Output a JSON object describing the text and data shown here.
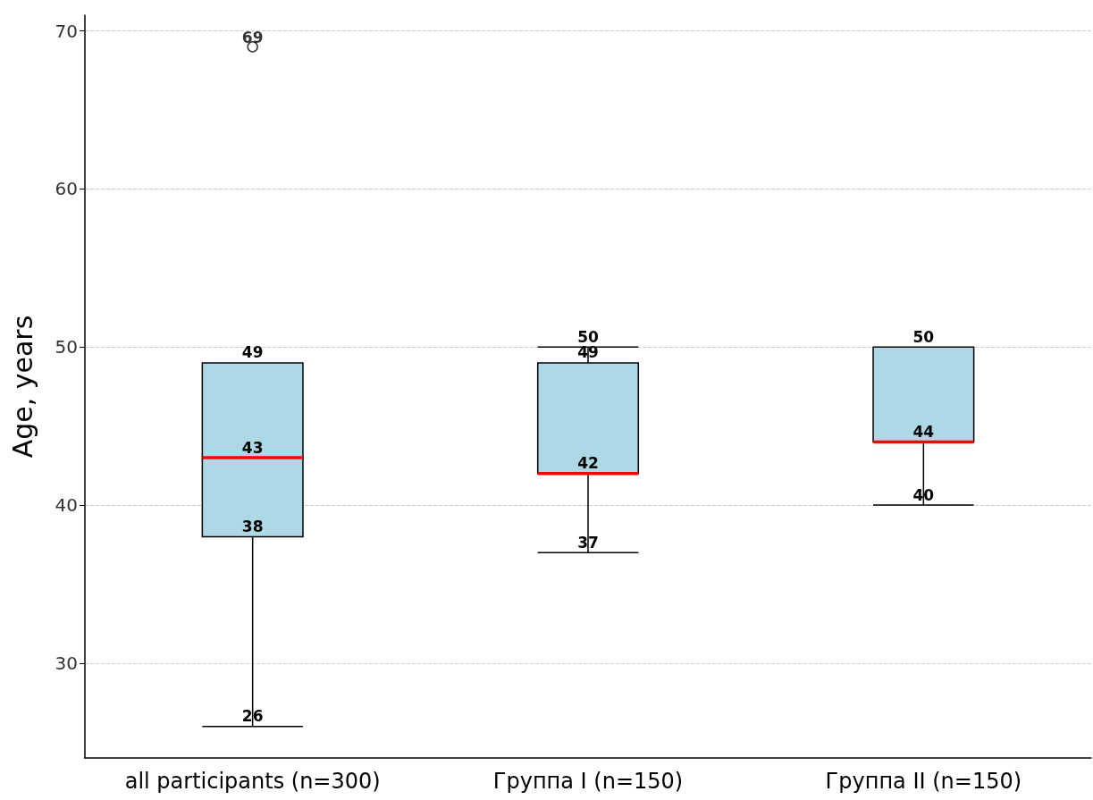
{
  "chart_data": {
    "type": "box",
    "ylabel": "Age, years",
    "categories": [
      "all participants (n=300)",
      "Группа I (n=150)",
      "Группа II (n=150)"
    ],
    "series": [
      {
        "color": "#add8e6",
        "boxes": [
          {
            "low": 26,
            "q1": 38,
            "median": 43,
            "q3": 49,
            "high": 49
          },
          {
            "low": 37,
            "q1": 42,
            "median": 42,
            "q3": 49,
            "high": 50
          },
          {
            "low": 40,
            "q1": 44,
            "median": 44,
            "q3": 50,
            "high": 50
          }
        ]
      },
      {
        "type": "scatter",
        "color": "#ffffff",
        "x": [
          "all participants (n=300)"
        ],
        "values": [
          69
        ],
        "value_labels": [
          "69"
        ]
      }
    ],
    "marker": "circle",
    "ylim": [
      24,
      71
    ],
    "yticks": [
      30,
      40,
      50,
      60,
      70
    ],
    "grid": true,
    "annotations": [
      {
        "text": "49",
        "x": "all participants (n=300)",
        "y": 49
      },
      {
        "text": "43",
        "x": "all participants (n=300)",
        "y": 43
      },
      {
        "text": "38",
        "x": "all participants (n=300)",
        "y": 38
      },
      {
        "text": "26",
        "x": "all participants (n=300)",
        "y": 26
      },
      {
        "text": "50",
        "x": "Группа I (n=150)",
        "y": 50
      },
      {
        "text": "49",
        "x": "Группа I (n=150)",
        "y": 49
      },
      {
        "text": "42",
        "x": "Группа I (n=150)",
        "y": 42
      },
      {
        "text": "37",
        "x": "Группа I (n=150)",
        "y": 37
      },
      {
        "text": "50",
        "x": "Группа II (n=150)",
        "y": 50
      },
      {
        "text": "44",
        "x": "Группа II (n=150)",
        "y": 44
      },
      {
        "text": "40",
        "x": "Группа II (n=150)",
        "y": 40
      }
    ]
  }
}
